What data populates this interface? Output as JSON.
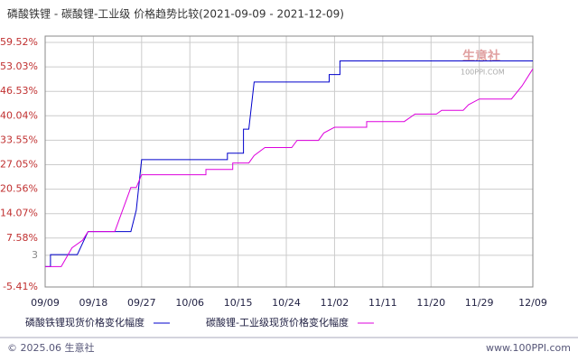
{
  "chart_data": {
    "type": "line",
    "title": "磷酸铁锂 - 碳酸锂-工业级 价格趋势比较(2021-09-09 - 2021-12-09)",
    "watermark": {
      "name": "生意社",
      "site": "100PPI.COM"
    },
    "footer": {
      "left": "© 2025.06 生意社",
      "right": "www.100PPI.com"
    },
    "xlim": [
      "09/09",
      "12/09"
    ],
    "xticks": [
      "09/09",
      "09/18",
      "09/27",
      "10/06",
      "10/15",
      "10/24",
      "11/02",
      "11/11",
      "11/20",
      "11/29",
      "12/09"
    ],
    "ylim": [
      -5.41,
      61.2
    ],
    "yticks": [
      {
        "value": -5.41,
        "label": "-5.41%"
      },
      3,
      {
        "value": 7.58,
        "label": "7.58%"
      },
      {
        "value": 14.07,
        "label": "14.07%"
      },
      {
        "value": 20.56,
        "label": "20.56%"
      },
      {
        "value": 27.05,
        "label": "27.05%"
      },
      {
        "value": 33.55,
        "label": "33.55%"
      },
      {
        "value": 40.04,
        "label": "40.04%"
      },
      {
        "value": 46.53,
        "label": "46.53%"
      },
      {
        "value": 53.03,
        "label": "53.03%"
      },
      {
        "value": 59.52,
        "label": "59.52%"
      }
    ],
    "grid": true,
    "series": [
      {
        "name": "磷酸铁锂现货价格变化幅度",
        "color": "#0000cc",
        "x": [
          "09/09",
          "09/10",
          "09/10",
          "09/15",
          "09/17",
          "09/25",
          "09/26",
          "09/27",
          "10/13",
          "10/13",
          "10/16",
          "10/16",
          "10/17",
          "10/18",
          "11/01",
          "11/01",
          "11/03",
          "11/03",
          "12/09"
        ],
        "values": [
          0,
          0,
          3.2,
          3.2,
          9.3,
          9.3,
          15,
          28.4,
          28.4,
          30.1,
          30.1,
          36.5,
          36.5,
          49,
          49,
          51,
          51,
          54.6,
          54.6
        ]
      },
      {
        "name": "碳酸锂-工业级现货价格变化幅度",
        "color": "#dd00dd",
        "x": [
          "09/09",
          "09/12",
          "09/14",
          "09/16",
          "09/17",
          "09/22",
          "09/25",
          "09/26",
          "09/27",
          "10/09",
          "10/09",
          "10/14",
          "10/14",
          "10/17",
          "10/18",
          "10/20",
          "10/25",
          "10/26",
          "10/30",
          "10/31",
          "11/02",
          "11/08",
          "11/08",
          "11/15",
          "11/17",
          "11/21",
          "11/22",
          "11/26",
          "11/27",
          "11/29",
          "12/05",
          "12/07",
          "12/09"
        ],
        "values": [
          0,
          0,
          5,
          7,
          9.3,
          9.3,
          21,
          21,
          24.4,
          24.4,
          25.8,
          25.8,
          27.5,
          27.5,
          29.5,
          31.6,
          31.6,
          33.5,
          33.5,
          35.5,
          37,
          37,
          38.5,
          38.5,
          40.5,
          40.5,
          41.5,
          41.5,
          43,
          44.5,
          44.5,
          48,
          52.5
        ]
      }
    ]
  }
}
